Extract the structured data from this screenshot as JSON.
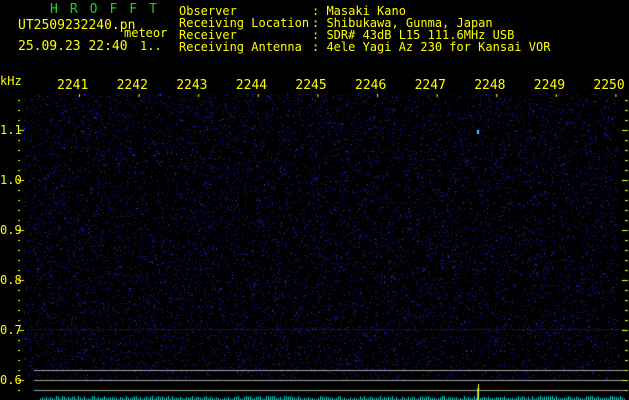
{
  "header": {
    "app_title": "HROFFT",
    "filename": "UT2509232240.pn",
    "mode": "meteor",
    "datetime": "25.09.23 22:40",
    "counter": "1..",
    "info": [
      {
        "label": "Observer",
        "value": ": Masaki Kano"
      },
      {
        "label": "Receiving Location",
        "value": ": Shibukawa, Gunma, Japan"
      },
      {
        "label": "Receiver",
        "value": ": SDR# 43dB L15 111.6MHz USB"
      },
      {
        "label": "Receiving Antenna",
        "value": ": 4ele Yagi Az 230 for Kansai VOR"
      }
    ]
  },
  "axes": {
    "y_unit": "kHz",
    "x_ticks": [
      "2241",
      "2242",
      "2243",
      "2244",
      "2245",
      "2246",
      "2247",
      "2248",
      "2249",
      "2250"
    ],
    "y_ticks": [
      "1.1",
      "1.0",
      "0.9",
      "0.8",
      "0.7",
      "0.6"
    ]
  },
  "colors": {
    "text": "#ffff00",
    "title": "#22cc22",
    "noise": "#2020c0",
    "spectrum": "#00e0e0",
    "guide_lines": "#a0a0a0"
  }
}
